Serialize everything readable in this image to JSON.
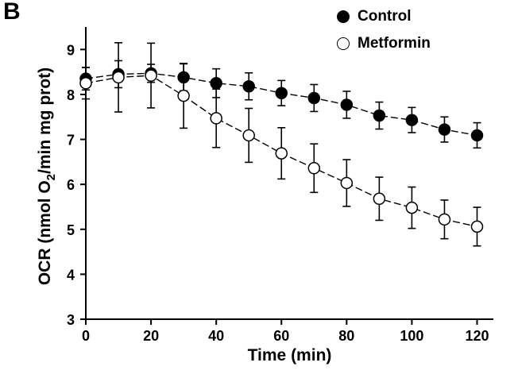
{
  "panel_label": "B",
  "chart_data": {
    "type": "line",
    "title": "",
    "xlabel": "Time (min)",
    "ylabel_parts": [
      "OCR (nmol O",
      "2",
      "/min mg prot)"
    ],
    "xlim": [
      0,
      125
    ],
    "ylim": [
      3,
      9.5
    ],
    "xticks": [
      0,
      20,
      40,
      60,
      80,
      100,
      120
    ],
    "yticks": [
      3,
      4,
      5,
      6,
      7,
      8,
      9
    ],
    "legend_position": "top-right",
    "series": [
      {
        "name": "Control",
        "marker": "filled-circle",
        "color": "#000000",
        "x": [
          0,
          10,
          20,
          30,
          40,
          50,
          60,
          70,
          80,
          90,
          100,
          110,
          120
        ],
        "y": [
          8.35,
          8.45,
          8.47,
          8.38,
          8.25,
          8.18,
          8.03,
          7.92,
          7.77,
          7.53,
          7.43,
          7.22,
          7.09
        ],
        "error": [
          0.25,
          0.3,
          0.2,
          0.3,
          0.32,
          0.3,
          0.28,
          0.3,
          0.3,
          0.3,
          0.28,
          0.28,
          0.28
        ]
      },
      {
        "name": "Metformin",
        "marker": "open-circle",
        "color": "#000000",
        "x": [
          0,
          10,
          20,
          30,
          40,
          50,
          60,
          70,
          80,
          90,
          100,
          110,
          120
        ],
        "y": [
          8.25,
          8.38,
          8.42,
          7.97,
          7.47,
          7.09,
          6.69,
          6.36,
          6.03,
          5.68,
          5.48,
          5.22,
          5.06
        ],
        "error": [
          0.35,
          0.77,
          0.72,
          0.72,
          0.65,
          0.6,
          0.57,
          0.54,
          0.52,
          0.48,
          0.46,
          0.43,
          0.43
        ]
      }
    ]
  }
}
